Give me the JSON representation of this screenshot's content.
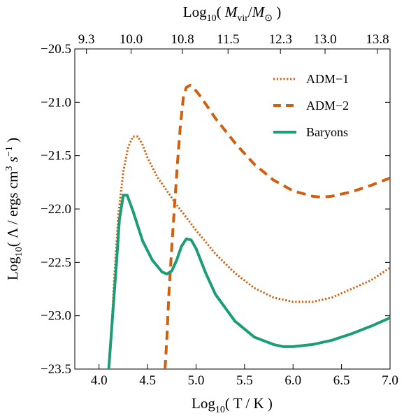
{
  "chart_data": {
    "type": "line",
    "xlabel_parts": [
      "Log",
      "10",
      "( T / K )"
    ],
    "top_xlabel_parts": [
      "Log",
      "10",
      "( ",
      "M",
      "vir",
      "/",
      "M",
      "⊙",
      " )"
    ],
    "ylabel_parts": [
      "Log",
      "10",
      "( Λ / ergs cm",
      "3",
      " s",
      "−1",
      " )"
    ],
    "xlim": [
      3.75,
      7.0
    ],
    "ylim": [
      -23.5,
      -20.5
    ],
    "x_ticks": [
      {
        "value": 4.0,
        "label": "4.0"
      },
      {
        "value": 4.5,
        "label": "4.5"
      },
      {
        "value": 5.0,
        "label": "5.0"
      },
      {
        "value": 5.5,
        "label": "5.5"
      },
      {
        "value": 6.0,
        "label": "6.0"
      },
      {
        "value": 6.5,
        "label": "6.5"
      },
      {
        "value": 7.0,
        "label": "7.0"
      }
    ],
    "y_ticks": [
      {
        "value": -20.5,
        "label": "−20.5"
      },
      {
        "value": -21.0,
        "label": "−21.0"
      },
      {
        "value": -21.5,
        "label": "−21.5"
      },
      {
        "value": -22.0,
        "label": "−22.0"
      },
      {
        "value": -22.5,
        "label": "−22.5"
      },
      {
        "value": -23.0,
        "label": "−23.0"
      },
      {
        "value": -23.5,
        "label": "−23.5"
      }
    ],
    "top_ticks": [
      {
        "value": 3.87,
        "label": "9.3"
      },
      {
        "value": 4.33,
        "label": "10.0"
      },
      {
        "value": 4.86,
        "label": "10.8"
      },
      {
        "value": 5.33,
        "label": "11.5"
      },
      {
        "value": 5.87,
        "label": "12.3"
      },
      {
        "value": 6.33,
        "label": "13.0"
      },
      {
        "value": 6.87,
        "label": "13.8"
      }
    ],
    "series": [
      {
        "name": "ADM−1",
        "style": "dotted",
        "color": "#d35f0e",
        "points": [
          [
            4.1,
            -23.5
          ],
          [
            4.13,
            -23.1
          ],
          [
            4.16,
            -22.6
          ],
          [
            4.2,
            -22.05
          ],
          [
            4.25,
            -21.65
          ],
          [
            4.3,
            -21.42
          ],
          [
            4.35,
            -21.32
          ],
          [
            4.4,
            -21.32
          ],
          [
            4.45,
            -21.4
          ],
          [
            4.5,
            -21.52
          ],
          [
            4.6,
            -21.7
          ],
          [
            4.7,
            -21.83
          ],
          [
            4.8,
            -21.96
          ],
          [
            4.9,
            -22.08
          ],
          [
            5.0,
            -22.2
          ],
          [
            5.2,
            -22.42
          ],
          [
            5.4,
            -22.6
          ],
          [
            5.6,
            -22.74
          ],
          [
            5.8,
            -22.83
          ],
          [
            6.0,
            -22.87
          ],
          [
            6.2,
            -22.87
          ],
          [
            6.4,
            -22.83
          ],
          [
            6.6,
            -22.75
          ],
          [
            6.8,
            -22.67
          ],
          [
            7.0,
            -22.55
          ]
        ]
      },
      {
        "name": "ADM−2",
        "style": "dashed",
        "color": "#d35f0e",
        "points": [
          [
            4.68,
            -23.5
          ],
          [
            4.7,
            -23.2
          ],
          [
            4.72,
            -22.8
          ],
          [
            4.75,
            -22.35
          ],
          [
            4.78,
            -21.95
          ],
          [
            4.81,
            -21.55
          ],
          [
            4.84,
            -21.2
          ],
          [
            4.87,
            -20.95
          ],
          [
            4.9,
            -20.86
          ],
          [
            4.94,
            -20.84
          ],
          [
            4.98,
            -20.87
          ],
          [
            5.05,
            -20.95
          ],
          [
            5.2,
            -21.15
          ],
          [
            5.4,
            -21.38
          ],
          [
            5.6,
            -21.58
          ],
          [
            5.8,
            -21.73
          ],
          [
            6.0,
            -21.83
          ],
          [
            6.2,
            -21.88
          ],
          [
            6.3,
            -21.89
          ],
          [
            6.4,
            -21.88
          ],
          [
            6.6,
            -21.84
          ],
          [
            6.8,
            -21.78
          ],
          [
            7.0,
            -21.71
          ]
        ]
      },
      {
        "name": "Baryons",
        "style": "solid",
        "color": "#1b9e77",
        "points": [
          [
            4.1,
            -23.5
          ],
          [
            4.14,
            -23.0
          ],
          [
            4.18,
            -22.5
          ],
          [
            4.21,
            -22.1
          ],
          [
            4.25,
            -21.87
          ],
          [
            4.29,
            -21.87
          ],
          [
            4.35,
            -22.02
          ],
          [
            4.45,
            -22.3
          ],
          [
            4.55,
            -22.48
          ],
          [
            4.65,
            -22.59
          ],
          [
            4.7,
            -22.61
          ],
          [
            4.75,
            -22.58
          ],
          [
            4.8,
            -22.48
          ],
          [
            4.85,
            -22.35
          ],
          [
            4.9,
            -22.28
          ],
          [
            4.95,
            -22.29
          ],
          [
            5.0,
            -22.37
          ],
          [
            5.1,
            -22.6
          ],
          [
            5.2,
            -22.8
          ],
          [
            5.4,
            -23.05
          ],
          [
            5.6,
            -23.2
          ],
          [
            5.8,
            -23.27
          ],
          [
            5.9,
            -23.29
          ],
          [
            6.0,
            -23.29
          ],
          [
            6.2,
            -23.27
          ],
          [
            6.4,
            -23.23
          ],
          [
            6.6,
            -23.17
          ],
          [
            6.8,
            -23.1
          ],
          [
            7.0,
            -23.02
          ]
        ]
      }
    ],
    "legend_position": "top-right",
    "grid": false
  }
}
